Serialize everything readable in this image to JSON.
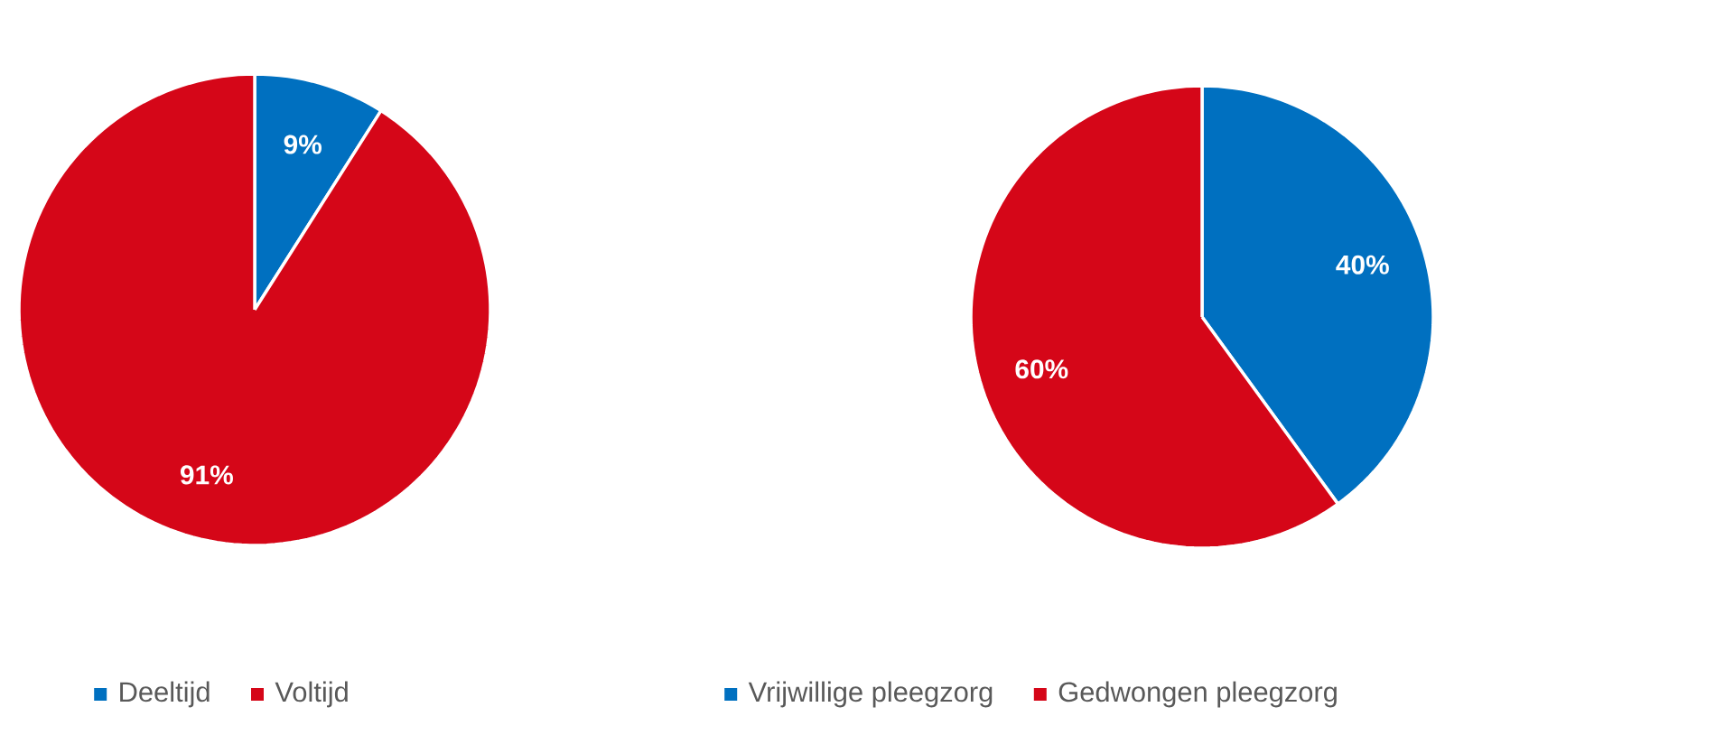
{
  "chart_data": [
    {
      "type": "pie",
      "categories": [
        "Deeltijd",
        "Voltijd"
      ],
      "values": [
        9,
        91
      ],
      "colors": [
        "#0070c0",
        "#d50618"
      ],
      "value_labels": [
        "9%",
        "91%"
      ],
      "legend": "bottom"
    },
    {
      "type": "pie",
      "categories": [
        "Vrijwillige pleegzorg",
        "Gedwongen pleegzorg"
      ],
      "values": [
        40,
        60
      ],
      "colors": [
        "#0070c0",
        "#d50618"
      ],
      "value_labels": [
        "40%",
        "60%"
      ],
      "legend": "bottom"
    }
  ]
}
